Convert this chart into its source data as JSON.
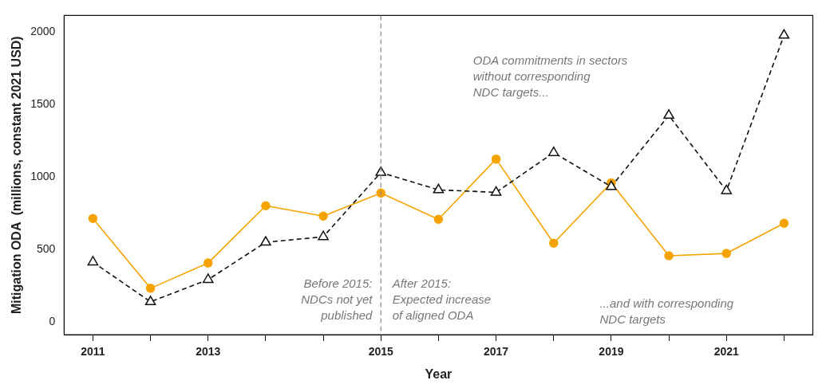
{
  "chart_data": {
    "type": "line",
    "xlabel": "Year",
    "ylabel": "Mitigation ODA  (millions, constant 2021 USD)",
    "categories": [
      "2011",
      null,
      "2013",
      null,
      null,
      "2015",
      null,
      "2017",
      null,
      "2019",
      null,
      "2021",
      null
    ],
    "series": [
      {
        "color": "#f5a300",
        "marker": "circle",
        "line_style": "solid",
        "values": [
          712,
          230,
          405,
          800,
          729,
          888,
          707,
          1123,
          542,
          959,
          455,
          471,
          679
        ]
      },
      {
        "color": "#111111",
        "marker": "triangle",
        "line_style": "dashed",
        "values": [
          411,
          137,
          290,
          548,
          586,
          1030,
          910,
          893,
          1167,
          932,
          1425,
          904,
          1978
        ]
      }
    ],
    "ylim": [
      -90,
      2115
    ],
    "yticks": [
      0,
      500,
      1000,
      1500,
      2000
    ],
    "grid": false,
    "legend": false,
    "ref_lines": [
      {
        "axis": "x",
        "value": "2015",
        "color": "#888888",
        "line_style": "dashed"
      }
    ],
    "annotations": [
      "Before 2015:\nNDCs not yet\npublished",
      "After 2015:\nExpected increase\nof aligned ODA",
      "ODA commitments in sectors\nwithout corresponding\nNDC targets...",
      "...and with corresponding\nNDC targets"
    ]
  }
}
